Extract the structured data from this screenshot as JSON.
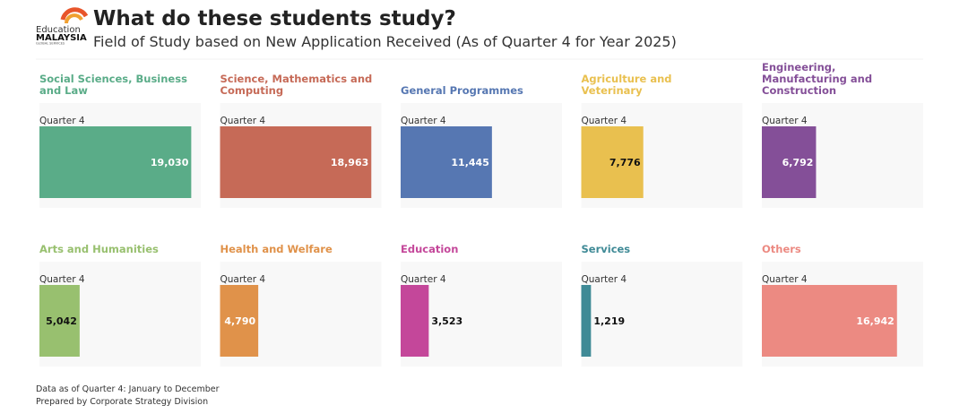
{
  "header": {
    "title": "What do these students study?",
    "subtitle": "Field of Study based on New Application Received (As of Quarter 4 for Year 2025)",
    "logo": [
      "Education",
      "MALAYSIA",
      "GLOBAL SERVICES"
    ]
  },
  "chart_data": [
    {
      "type": "bar",
      "orientation": "horizontal",
      "title": "Social Sciences, Business and Law",
      "categories": [
        "Quarter 4"
      ],
      "values": [
        19030
      ],
      "value_labels": [
        "19,030"
      ],
      "color": "#5aac88",
      "label_color": "#ffffff",
      "xlim": [
        0,
        20000
      ]
    },
    {
      "type": "bar",
      "orientation": "horizontal",
      "title": "Science, Mathematics and Computing",
      "categories": [
        "Quarter 4"
      ],
      "values": [
        18963
      ],
      "value_labels": [
        "18,963"
      ],
      "color": "#c66a57",
      "label_color": "#ffffff",
      "xlim": [
        0,
        20000
      ]
    },
    {
      "type": "bar",
      "orientation": "horizontal",
      "title": "General Programmes",
      "categories": [
        "Quarter 4"
      ],
      "values": [
        11445
      ],
      "value_labels": [
        "11,445"
      ],
      "color": "#5677b2",
      "label_color": "#ffffff",
      "xlim": [
        0,
        20000
      ]
    },
    {
      "type": "bar",
      "orientation": "horizontal",
      "title": "Agriculture and Veterinary",
      "categories": [
        "Quarter 4"
      ],
      "values": [
        7776
      ],
      "value_labels": [
        "7,776"
      ],
      "color": "#e9c04f",
      "label_color": "#111111",
      "xlim": [
        0,
        20000
      ]
    },
    {
      "type": "bar",
      "orientation": "horizontal",
      "title": "Engineering, Manufacturing and Construction",
      "categories": [
        "Quarter 4"
      ],
      "values": [
        6792
      ],
      "value_labels": [
        "6,792"
      ],
      "color": "#844f98",
      "label_color": "#ffffff",
      "xlim": [
        0,
        20000
      ]
    },
    {
      "type": "bar",
      "orientation": "horizontal",
      "title": "Arts and Humanities",
      "categories": [
        "Quarter 4"
      ],
      "values": [
        5042
      ],
      "value_labels": [
        "5,042"
      ],
      "color": "#98c06f",
      "label_color": "#111111",
      "xlim": [
        0,
        20000
      ]
    },
    {
      "type": "bar",
      "orientation": "horizontal",
      "title": "Health and Welfare",
      "categories": [
        "Quarter 4"
      ],
      "values": [
        4790
      ],
      "value_labels": [
        "4,790"
      ],
      "color": "#e0924a",
      "label_color": "#ffffff",
      "xlim": [
        0,
        20000
      ]
    },
    {
      "type": "bar",
      "orientation": "horizontal",
      "title": "Education",
      "categories": [
        "Quarter 4"
      ],
      "values": [
        3523
      ],
      "value_labels": [
        "3,523"
      ],
      "color": "#c4479a",
      "label_color": "#111111",
      "xlim": [
        0,
        20000
      ]
    },
    {
      "type": "bar",
      "orientation": "horizontal",
      "title": "Services",
      "categories": [
        "Quarter 4"
      ],
      "values": [
        1219
      ],
      "value_labels": [
        "1,219"
      ],
      "color": "#3f8a96",
      "label_color": "#111111",
      "xlim": [
        0,
        20000
      ]
    },
    {
      "type": "bar",
      "orientation": "horizontal",
      "title": "Others",
      "categories": [
        "Quarter 4"
      ],
      "values": [
        16942
      ],
      "value_labels": [
        "16,942"
      ],
      "color": "#ec8a82",
      "label_color": "#ffffff",
      "xlim": [
        0,
        20000
      ]
    }
  ],
  "footer": [
    "Data as of Quarter 4: January to December",
    "Prepared by Corporate Strategy Division"
  ]
}
